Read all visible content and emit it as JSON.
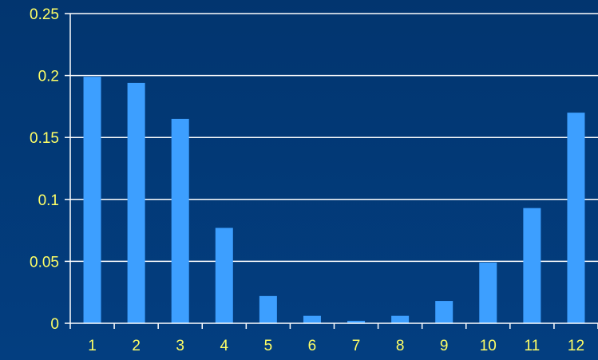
{
  "colors": {
    "background": "#033a7a",
    "bar": "#3d9fff",
    "axis": "#ffffff",
    "gridline": "#ffffff",
    "tick_label": "#ffff66"
  },
  "chart_data": {
    "type": "bar",
    "categories": [
      "1",
      "2",
      "3",
      "4",
      "5",
      "6",
      "7",
      "8",
      "9",
      "10",
      "11",
      "12"
    ],
    "values": [
      0.199,
      0.194,
      0.165,
      0.077,
      0.022,
      0.006,
      0.002,
      0.006,
      0.018,
      0.049,
      0.093,
      0.17
    ],
    "title": "",
    "xlabel": "",
    "ylabel": "",
    "ylim": [
      0,
      0.25
    ],
    "yticks": [
      "0",
      "0.05",
      "0.1",
      "0.15",
      "0.2",
      "0.25"
    ],
    "grid": true,
    "legend": false
  }
}
